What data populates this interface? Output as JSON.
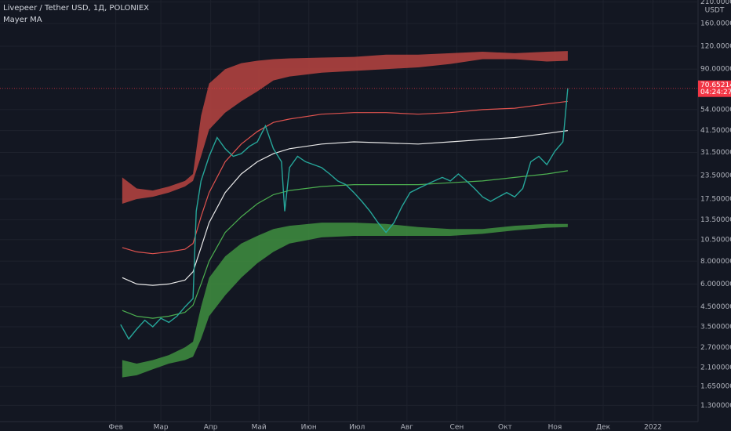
{
  "chart_data": {
    "type": "line",
    "title": "Livepeer / Tether USD, 1Д, POLONIEX",
    "indicator": "Mayer MA",
    "currency": "USDT",
    "log_scale": true,
    "grid": true,
    "xlim": [
      -40,
      394
    ],
    "xticks": [
      {
        "value": 32,
        "label": "Фев"
      },
      {
        "value": 60,
        "label": "Мар"
      },
      {
        "value": 91,
        "label": "Апр"
      },
      {
        "value": 121,
        "label": "Май"
      },
      {
        "value": 152,
        "label": "Июн"
      },
      {
        "value": 182,
        "label": "Июл"
      },
      {
        "value": 213,
        "label": "Авг"
      },
      {
        "value": 244,
        "label": "Сен"
      },
      {
        "value": 274,
        "label": "Окт"
      },
      {
        "value": 305,
        "label": "Ноя"
      },
      {
        "value": 335,
        "label": "Дек"
      },
      {
        "value": 366,
        "label": "2022"
      }
    ],
    "ylim": [
      1.06,
      215
    ],
    "yticks": [
      {
        "value": 210,
        "label": "210.00000000"
      },
      {
        "value": 160,
        "label": "160.00000000"
      },
      {
        "value": 120,
        "label": "120.00000000"
      },
      {
        "value": 90,
        "label": "90.00000000"
      },
      {
        "value": 54,
        "label": "54.00000000"
      },
      {
        "value": 41.5,
        "label": "41.50000000"
      },
      {
        "value": 31.5,
        "label": "31.50000000"
      },
      {
        "value": 23.5,
        "label": "23.50000000"
      },
      {
        "value": 17.5,
        "label": "17.50000000"
      },
      {
        "value": 13.5,
        "label": "13.50000000"
      },
      {
        "value": 10.5,
        "label": "10.50000000"
      },
      {
        "value": 8,
        "label": "8.00000000"
      },
      {
        "value": 6,
        "label": "6.00000000"
      },
      {
        "value": 4.5,
        "label": "4.50000000"
      },
      {
        "value": 3.5,
        "label": "3.50000000"
      },
      {
        "value": 2.7,
        "label": "2.70000000"
      },
      {
        "value": 2.1,
        "label": "2.10000000"
      },
      {
        "value": 1.65,
        "label": "1.65000000"
      },
      {
        "value": 1.3,
        "label": "1.30000000"
      }
    ],
    "price": {
      "color": "#26a69a",
      "x": [
        35,
        40,
        45,
        50,
        55,
        60,
        65,
        70,
        75,
        80,
        82,
        85,
        90,
        95,
        100,
        105,
        110,
        115,
        120,
        125,
        130,
        135,
        137,
        140,
        145,
        150,
        155,
        160,
        165,
        170,
        175,
        180,
        185,
        190,
        195,
        200,
        205,
        210,
        215,
        220,
        225,
        230,
        235,
        240,
        245,
        250,
        255,
        260,
        265,
        270,
        275,
        280,
        285,
        290,
        295,
        300,
        305,
        310,
        313
      ],
      "values": [
        3.6,
        3.0,
        3.4,
        3.8,
        3.5,
        3.9,
        3.7,
        4.0,
        4.5,
        5.0,
        15,
        22,
        30,
        38,
        33,
        30,
        31,
        34,
        36,
        44,
        33,
        28,
        15,
        26,
        30,
        28,
        27,
        26,
        24,
        22,
        21,
        19,
        17,
        15,
        13,
        11.5,
        13,
        16,
        19,
        20,
        21,
        22,
        23,
        22,
        24,
        22,
        20,
        18,
        17,
        18,
        19,
        18,
        20,
        28,
        30,
        27,
        32,
        36,
        70.65214748
      ]
    },
    "ma_x": [
      36,
      45,
      55,
      65,
      75,
      80,
      85,
      90,
      100,
      110,
      120,
      130,
      140,
      160,
      180,
      200,
      220,
      240,
      260,
      280,
      300,
      313
    ],
    "bands": [
      {
        "color": "#b84441",
        "upper": [
          23,
          20,
          19.5,
          20.5,
          22,
          24,
          50,
          75,
          90,
          97,
          100,
          102,
          103,
          104,
          105,
          108,
          108,
          110,
          112,
          110,
          112,
          113
        ],
        "lower": [
          16.5,
          17.5,
          18,
          19,
          20.5,
          22,
          30,
          42,
          52,
          60,
          68,
          78,
          82,
          86,
          88,
          90,
          92,
          96,
          102,
          102,
          99,
          100
        ]
      },
      {
        "color": "#3f8f3f",
        "upper": [
          2.3,
          2.2,
          2.3,
          2.45,
          2.7,
          2.9,
          4.5,
          6.5,
          8.5,
          10,
          11,
          12,
          12.5,
          13,
          13,
          12.8,
          12.3,
          12,
          12,
          12.5,
          12.8,
          12.8
        ],
        "lower": [
          1.85,
          1.9,
          2.05,
          2.2,
          2.3,
          2.4,
          3.0,
          4.0,
          5.2,
          6.5,
          7.8,
          9,
          10,
          10.8,
          11,
          11,
          11,
          11,
          11.3,
          11.8,
          12.2,
          12.3
        ]
      }
    ],
    "series": [
      {
        "color": "#e0534f",
        "values": [
          9.5,
          9.0,
          8.8,
          9.0,
          9.3,
          10,
          14,
          19,
          28,
          35,
          41,
          46,
          48,
          51,
          52,
          52,
          51,
          52,
          54,
          55,
          58,
          60
        ]
      },
      {
        "color": "#e8e8e8",
        "values": [
          6.5,
          6.0,
          5.9,
          6.0,
          6.3,
          7.0,
          9.5,
          13,
          19,
          24,
          28,
          31,
          33,
          35,
          36,
          35.5,
          35,
          36,
          37,
          38,
          40,
          41.5
        ]
      },
      {
        "color": "#4caf50",
        "values": [
          4.3,
          4.0,
          3.9,
          4.0,
          4.2,
          4.6,
          6,
          8,
          11.5,
          14,
          16.5,
          18.5,
          19.5,
          20.5,
          21,
          21,
          21,
          21.5,
          22,
          23,
          24,
          25
        ]
      }
    ],
    "last_price": {
      "value": 70.65214748,
      "countdown": "04:24:27",
      "color": "#f23645"
    }
  }
}
